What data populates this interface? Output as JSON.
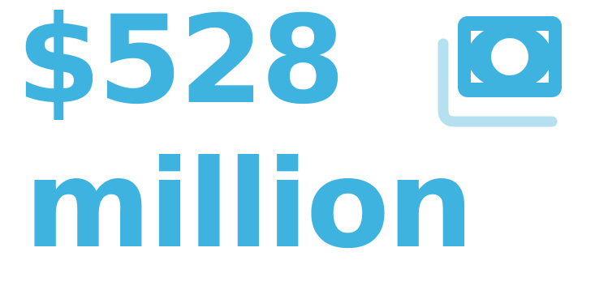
{
  "stat": {
    "amount": "$528",
    "unit": "million",
    "icon": "money-bills-icon"
  },
  "colors": {
    "primary": "#3fb3e0",
    "secondary": "#b4e0f0"
  }
}
